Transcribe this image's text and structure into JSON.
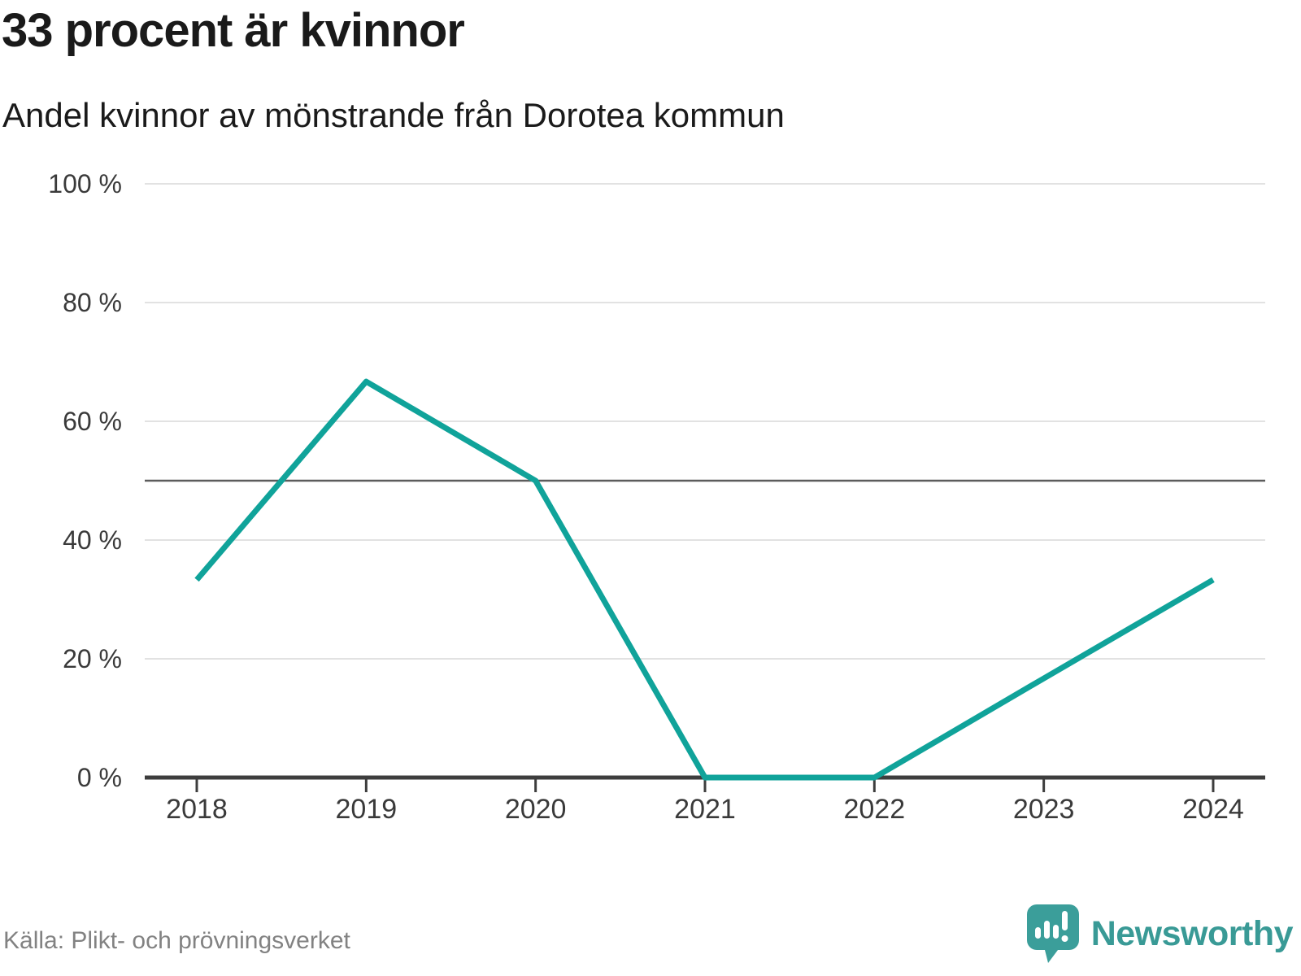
{
  "header": {
    "title": "33 procent är kvinnor",
    "subtitle": "Andel kvinnor av mönstrande från Dorotea kommun"
  },
  "chart_data": {
    "type": "line",
    "title": "33 procent är kvinnor",
    "subtitle": "Andel kvinnor av mönstrande från Dorotea kommun",
    "categories": [
      "2018",
      "2019",
      "2020",
      "2021",
      "2022",
      "2023",
      "2024"
    ],
    "series": [
      {
        "name": "Andel kvinnor av mönstrande",
        "values": [
          33.3,
          66.7,
          50,
          0,
          0,
          16.7,
          33.3
        ]
      }
    ],
    "unit": "%",
    "ylim": [
      0,
      100
    ],
    "yticks": [
      0,
      20,
      40,
      60,
      80,
      100
    ],
    "ytick_labels": [
      "0 %",
      "20 %",
      "40 %",
      "60 %",
      "80 %",
      "100 %"
    ],
    "reference_line": 50,
    "grid": true,
    "legend": "none"
  },
  "footer": {
    "source": "Källa: Plikt- och prövningsverket",
    "brand": "Newsworthy"
  },
  "colors": {
    "accent": "#10a39a",
    "brand_teal": "#399a96",
    "brand_bubble": "#3b9e9a",
    "grid": "#e2e2e2",
    "reference": "#5c5c5c",
    "axis": "#3d3d3d",
    "text": "#1a1a1a",
    "muted": "#828282"
  }
}
